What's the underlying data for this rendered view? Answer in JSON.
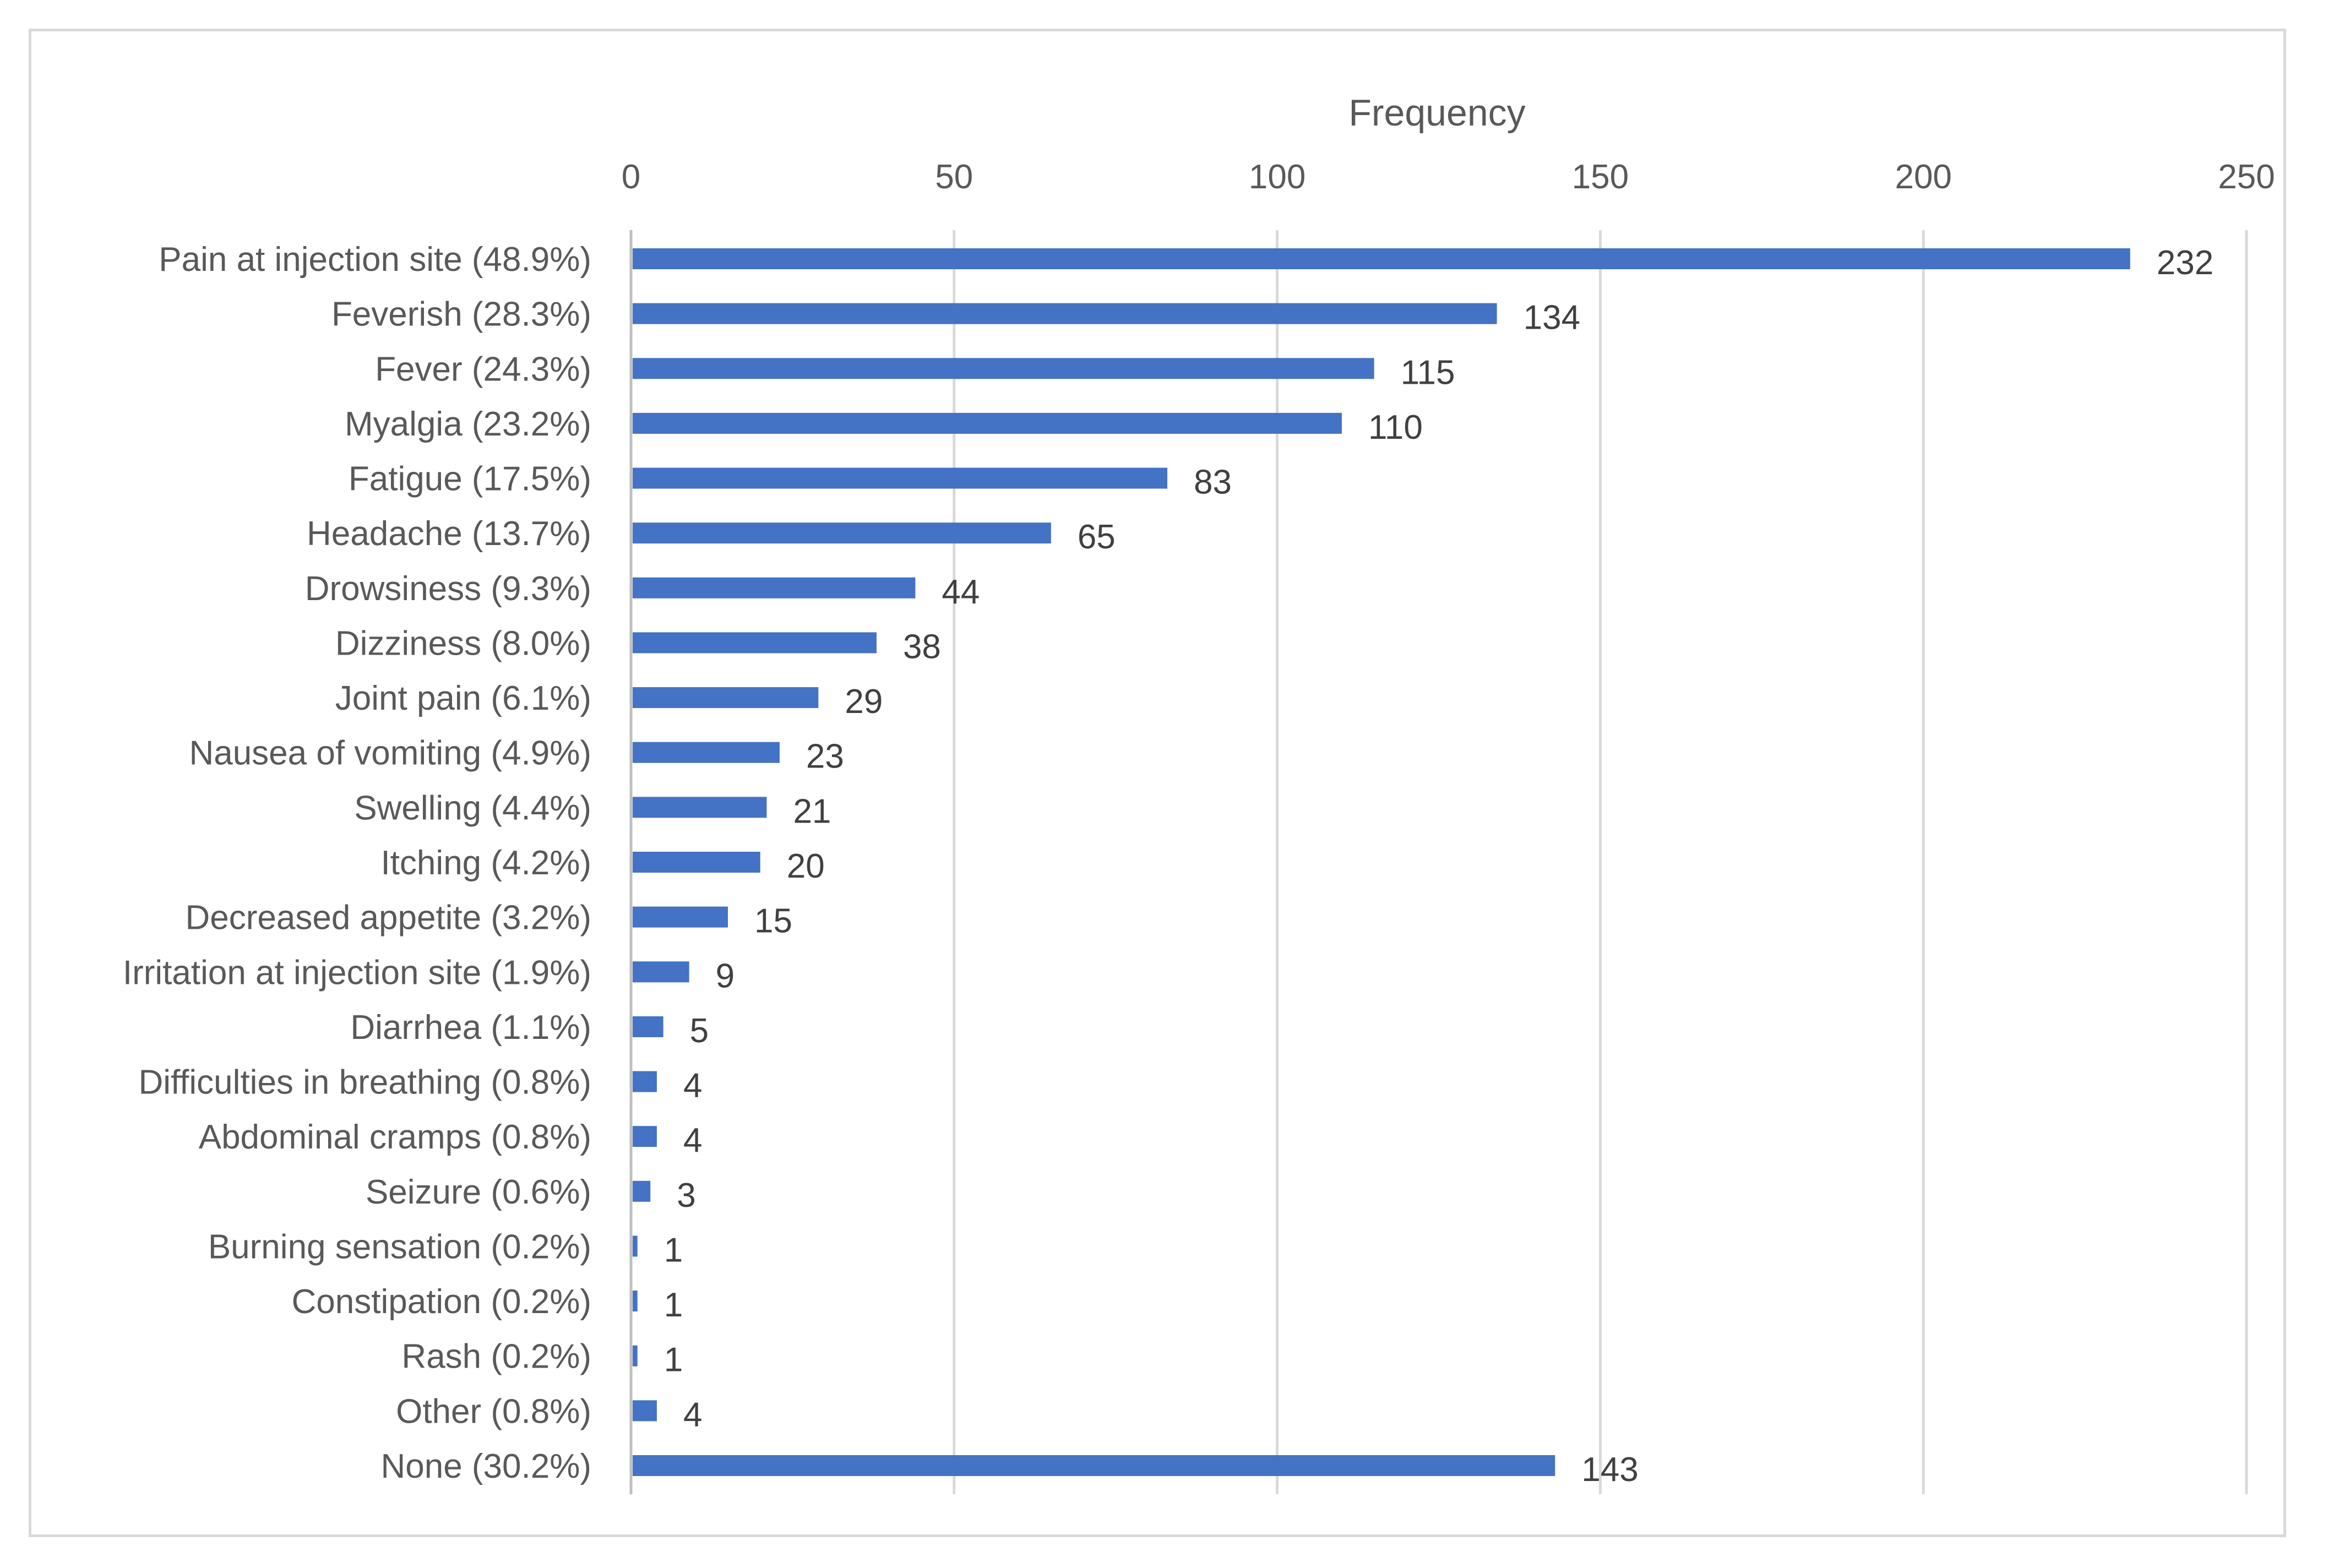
{
  "chart_data": {
    "type": "bar",
    "orientation": "horizontal",
    "xlabel": "Frequency",
    "xlim": [
      0,
      250
    ],
    "xticks": [
      0,
      50,
      100,
      150,
      200,
      250
    ],
    "x_axis_position": "top",
    "grid": true,
    "legend": "none",
    "bar_color": "#4472c4",
    "categories": [
      "Pain at injection site (48.9%)",
      "Feverish (28.3%)",
      "Fever (24.3%)",
      "Myalgia (23.2%)",
      "Fatigue (17.5%)",
      "Headache (13.7%)",
      "Drowsiness (9.3%)",
      "Dizziness (8.0%)",
      "Joint pain (6.1%)",
      "Nausea of vomiting (4.9%)",
      "Swelling (4.4%)",
      "Itching (4.2%)",
      "Decreased appetite (3.2%)",
      "Irritation at injection site (1.9%)",
      "Diarrhea (1.1%)",
      "Difficulties in breathing (0.8%)",
      "Abdominal cramps (0.8%)",
      "Seizure (0.6%)",
      "Burning sensation (0.2%)",
      "Constipation (0.2%)",
      "Rash (0.2%)",
      "Other (0.8%)",
      "None (30.2%)"
    ],
    "values": [
      232,
      134,
      115,
      110,
      83,
      65,
      44,
      38,
      29,
      23,
      21,
      20,
      15,
      9,
      5,
      4,
      4,
      3,
      1,
      1,
      1,
      4,
      143
    ],
    "data_labels": [
      "232",
      "134",
      "115",
      "110",
      "83",
      "65",
      "44",
      "38",
      "29",
      "23",
      "21",
      "20",
      "15",
      "9",
      "5",
      "4",
      "4",
      "3",
      "1",
      "1",
      "1",
      "4",
      "143"
    ]
  }
}
